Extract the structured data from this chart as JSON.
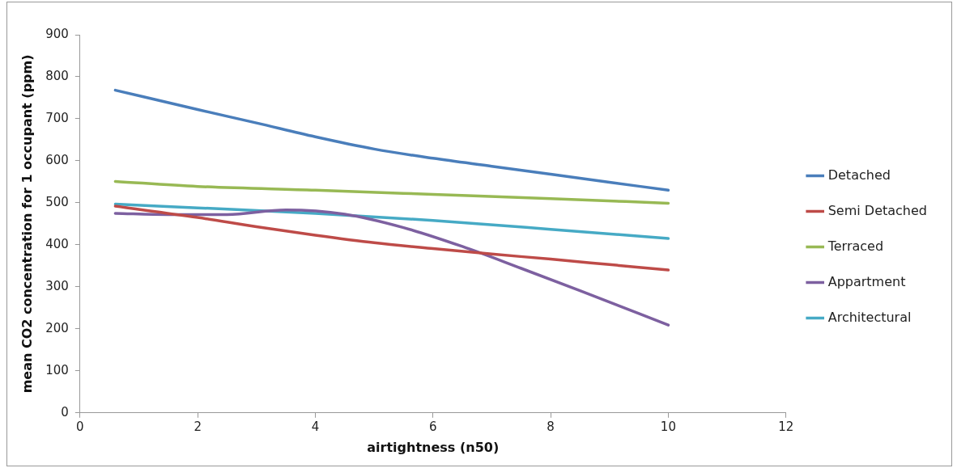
{
  "chart_data": {
    "type": "line",
    "xlabel": "airtightness (n50)",
    "ylabel": "mean CO2 concentration for 1 occupant (ppm)",
    "xlim": [
      0,
      12
    ],
    "xticks": [
      0,
      2,
      4,
      6,
      8,
      10,
      12
    ],
    "ylim": [
      0,
      900
    ],
    "yticks": [
      0,
      100,
      200,
      300,
      400,
      500,
      600,
      700,
      800,
      900
    ],
    "legend": "right",
    "marker": "none",
    "line_style": "solid",
    "grid": false,
    "series": [
      {
        "name": "Detached",
        "color": "#4a7ebb",
        "x": [
          0.6,
          2,
          3,
          4,
          5,
          6,
          7,
          8,
          9,
          10
        ],
        "values": [
          768,
          722,
          690,
          657,
          628,
          606,
          587,
          568,
          549,
          530
        ]
      },
      {
        "name": "Semi Detached",
        "color": "#be4b48",
        "x": [
          0.6,
          2,
          3,
          4,
          5,
          6,
          7,
          8,
          9,
          10
        ],
        "values": [
          492,
          465,
          443,
          423,
          405,
          391,
          378,
          366,
          353,
          340
        ]
      },
      {
        "name": "Terraced",
        "color": "#98b954",
        "x": [
          0.6,
          2,
          4,
          6,
          8,
          10
        ],
        "values": [
          551,
          539,
          530,
          520,
          510,
          499
        ]
      },
      {
        "name": "Appartment",
        "color": "#7d60a0",
        "x": [
          0.6,
          1.5,
          2.5,
          3.5,
          4.5,
          5.5,
          6.5,
          7.5,
          8.5,
          10
        ],
        "values": [
          475,
          472,
          472,
          483,
          473,
          441,
          396,
          344,
          291,
          209
        ]
      },
      {
        "name": "Architectural",
        "color": "#46aac5",
        "x": [
          0.6,
          2,
          4,
          6,
          8,
          10
        ],
        "values": [
          497,
          488,
          475,
          458,
          437,
          415
        ]
      }
    ]
  }
}
